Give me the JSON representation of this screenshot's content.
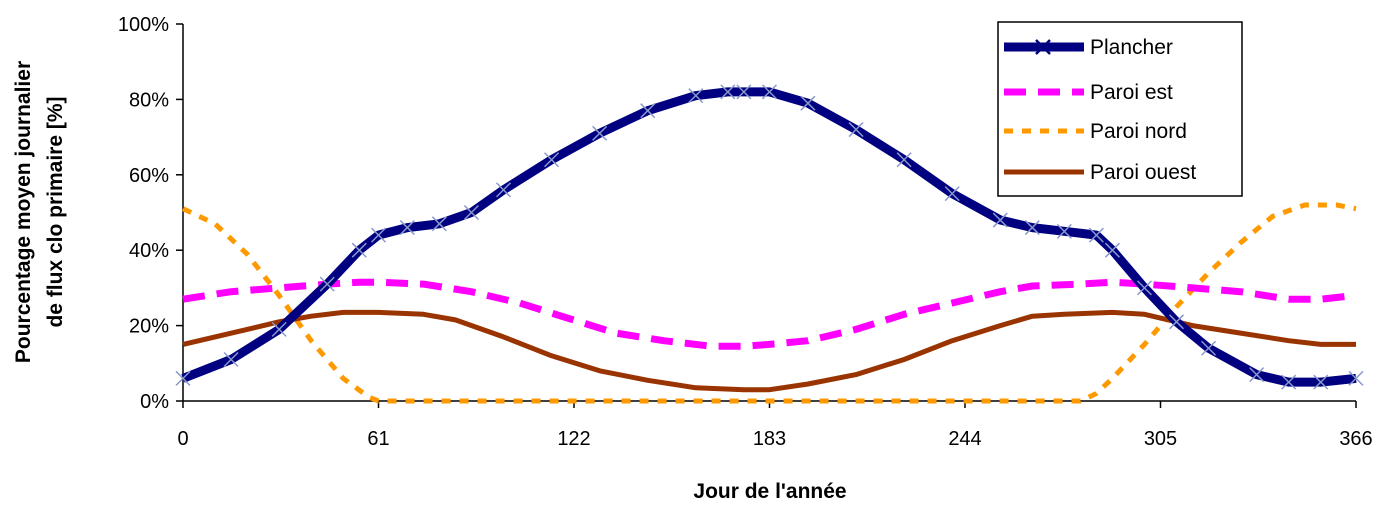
{
  "chart_data": {
    "type": "line",
    "title": "",
    "xlabel": "Jour de l'année",
    "ylabel_lines": [
      "Pourcentage moyen journalier",
      "de flux clo primaire [%]"
    ],
    "xlim": [
      0,
      366
    ],
    "ylim": [
      0,
      100
    ],
    "x_ticks": [
      0,
      61,
      122,
      183,
      244,
      305,
      366
    ],
    "x_tick_labels": [
      "0",
      "61",
      "122",
      "183",
      "244",
      "305",
      "366"
    ],
    "y_ticks": [
      0,
      20,
      40,
      60,
      80,
      100
    ],
    "y_tick_labels": [
      "0%",
      "20%",
      "40%",
      "60%",
      "80%",
      "100%"
    ],
    "legend_position": "top-right",
    "grid": false,
    "series": [
      {
        "name": "Plancher",
        "color": "#000080",
        "style": "solid-with-x-markers",
        "x": [
          0,
          15,
          30,
          45,
          55,
          61,
          70,
          80,
          90,
          100,
          115,
          130,
          145,
          160,
          170,
          175,
          183,
          195,
          210,
          225,
          240,
          255,
          265,
          275,
          285,
          290,
          300,
          310,
          320,
          335,
          345,
          355,
          366
        ],
        "y": [
          6,
          11,
          19,
          31,
          40,
          44,
          46,
          47,
          50,
          56,
          64,
          71,
          77,
          81,
          82,
          82,
          82,
          79,
          72,
          64,
          55,
          48,
          46,
          45,
          44,
          40,
          30,
          21,
          14,
          7,
          5,
          5,
          6
        ]
      },
      {
        "name": "Paroi est",
        "color": "#ff00ff",
        "style": "dashed",
        "x": [
          0,
          15,
          30,
          45,
          55,
          61,
          75,
          90,
          105,
          120,
          135,
          150,
          165,
          175,
          183,
          195,
          210,
          225,
          240,
          255,
          265,
          280,
          290,
          300,
          315,
          330,
          345,
          355,
          366
        ],
        "y": [
          27,
          29,
          30,
          31,
          31.5,
          31.5,
          31,
          29,
          26,
          22,
          18,
          16,
          14.5,
          14.5,
          15,
          16,
          19,
          23,
          26,
          29,
          30.5,
          31,
          31.5,
          31,
          30,
          29,
          27,
          27,
          28
        ]
      },
      {
        "name": "Paroi nord",
        "color": "#ff9900",
        "style": "dashed",
        "x": [
          0,
          10,
          20,
          30,
          40,
          50,
          58,
          61,
          65,
          100,
          150,
          200,
          250,
          280,
          285,
          290,
          300,
          310,
          320,
          330,
          340,
          350,
          360,
          366
        ],
        "y": [
          51,
          47,
          39,
          28,
          16,
          6,
          1,
          0,
          0,
          0,
          0,
          0,
          0,
          0,
          2,
          6,
          15,
          25,
          34,
          42,
          49,
          52,
          52,
          51
        ]
      },
      {
        "name": "Paroi ouest",
        "color": "#993300",
        "style": "solid",
        "x": [
          0,
          10,
          20,
          30,
          40,
          50,
          61,
          75,
          85,
          100,
          115,
          130,
          145,
          160,
          175,
          183,
          195,
          210,
          225,
          240,
          255,
          265,
          275,
          290,
          300,
          315,
          330,
          345,
          355,
          366
        ],
        "y": [
          15,
          17,
          19,
          21,
          22.5,
          23.5,
          23.5,
          23,
          21.5,
          17,
          12,
          8,
          5.5,
          3.5,
          3,
          3,
          4.5,
          7,
          11,
          16,
          20,
          22.5,
          23,
          23.5,
          23,
          20,
          18,
          16,
          15,
          15
        ]
      }
    ]
  }
}
